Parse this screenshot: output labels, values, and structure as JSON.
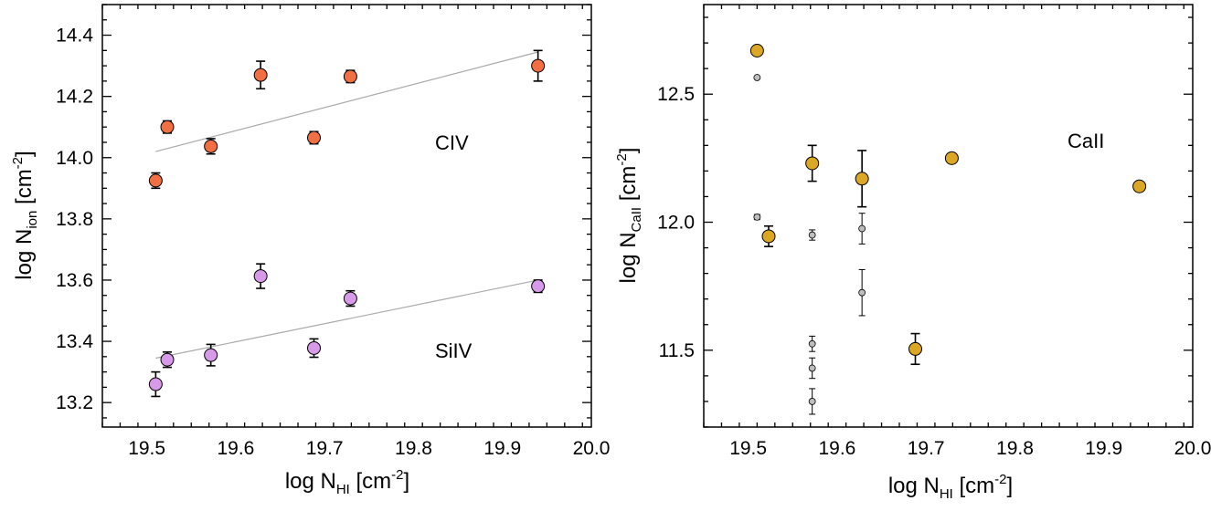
{
  "chart_data": [
    {
      "type": "scatter",
      "xlabel": {
        "main": "log N",
        "sub": "HI",
        "unit_pre": " [cm",
        "unit_sup": "-2",
        "unit_post": "]"
      },
      "ylabel": {
        "main": "log N",
        "sub": "ion",
        "unit_pre": " [cm",
        "unit_sup": "-2",
        "unit_post": "]"
      },
      "xlim": [
        19.45,
        20.0
      ],
      "ylim": [
        13.12,
        14.5
      ],
      "xticks": [
        "19.5",
        "19.6",
        "19.7",
        "19.8",
        "19.9",
        "20.0"
      ],
      "yticks": [
        "13.2",
        "13.4",
        "13.6",
        "13.8",
        "14.0",
        "14.2",
        "14.4"
      ],
      "grid": false,
      "series": [
        {
          "name": "CIV",
          "color": "#f26f44",
          "x": [
            19.51,
            19.523,
            19.572,
            19.628,
            19.688,
            19.729,
            19.94
          ],
          "y": [
            13.925,
            14.1,
            14.037,
            14.27,
            14.065,
            14.265,
            14.3
          ],
          "err": [
            0.025,
            0.02,
            0.025,
            0.045,
            0.02,
            0.02,
            0.05
          ],
          "fit": {
            "x": [
              19.51,
              19.94
            ],
            "y": [
              14.02,
              14.345
            ]
          }
        },
        {
          "name": "SiIV",
          "color": "#d79ae8",
          "x": [
            19.51,
            19.523,
            19.572,
            19.628,
            19.688,
            19.729,
            19.94
          ],
          "y": [
            13.26,
            13.34,
            13.355,
            13.613,
            13.378,
            13.54,
            13.58
          ],
          "err": [
            0.04,
            0.025,
            0.035,
            0.04,
            0.03,
            0.025,
            0.02
          ],
          "fit": {
            "x": [
              19.51,
              19.94
            ],
            "y": [
              13.345,
              13.6
            ]
          }
        }
      ]
    },
    {
      "type": "scatter",
      "xlabel": {
        "main": "log N",
        "sub": "HI",
        "unit_pre": " [cm",
        "unit_sup": "-2",
        "unit_post": "]"
      },
      "ylabel": {
        "main": "log N",
        "sub": "CaII",
        "unit_pre": " [cm",
        "unit_sup": "-2",
        "unit_post": "]"
      },
      "xlim": [
        19.45,
        20.0
      ],
      "ylim": [
        11.2,
        12.85
      ],
      "xticks": [
        "19.5",
        "19.6",
        "19.7",
        "19.8",
        "19.9",
        "20.0"
      ],
      "yticks": [
        "11.5",
        "12.0",
        "12.5"
      ],
      "grid": false,
      "series": [
        {
          "name": "CaII",
          "color": "#dca824",
          "x": [
            19.51,
            19.523,
            19.572,
            19.628,
            19.688,
            19.729,
            19.94
          ],
          "y": [
            12.67,
            11.945,
            12.23,
            12.17,
            11.505,
            12.25,
            12.14
          ],
          "err": [
            0.0,
            0.04,
            0.07,
            0.11,
            0.06,
            0.0,
            0.0
          ]
        },
        {
          "name": "",
          "color": "#bdbdbd",
          "x": [
            19.51,
            19.51,
            19.572,
            19.572,
            19.572,
            19.572,
            19.628,
            19.628
          ],
          "y": [
            12.565,
            12.02,
            11.95,
            11.525,
            11.43,
            11.3,
            11.975,
            11.725
          ],
          "err": [
            0.0,
            0.01,
            0.02,
            0.03,
            0.04,
            0.05,
            0.06,
            0.09
          ]
        }
      ]
    }
  ],
  "labels": {
    "civ": "CIV",
    "siiv": "SiIV",
    "caii": "CaII"
  }
}
